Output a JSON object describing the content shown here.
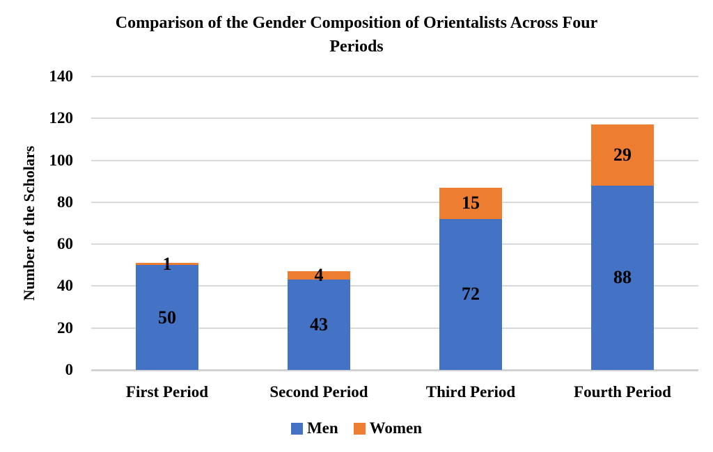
{
  "chart_data": {
    "type": "bar",
    "stacked": true,
    "title": "Comparison of the Gender Composition of Orientalists Across Four Periods",
    "title_lines": [
      "Comparison of the Gender Composition of Orientalists Across Four",
      "Periods"
    ],
    "ylabel": "Number of the Scholars",
    "xlabel": "",
    "categories": [
      "First Period",
      "Second Period",
      "Third Period",
      "Fourth Period"
    ],
    "series": [
      {
        "name": "Men",
        "color": "#4472C4",
        "values": [
          50,
          43,
          72,
          88
        ]
      },
      {
        "name": "Women",
        "color": "#ED7D31",
        "values": [
          1,
          4,
          15,
          29
        ]
      }
    ],
    "ylim": [
      0,
      140
    ],
    "yticks": [
      0,
      20,
      40,
      60,
      80,
      100,
      120,
      140
    ],
    "grid": true,
    "grid_orientation": "horizontal",
    "colors": {
      "gridline": "#D9D9D9",
      "axis_line": "#D2D2D2",
      "label_text": "#000000",
      "background": "#FFFFFF"
    },
    "legend_position": "bottom-center",
    "data_labels": true
  }
}
